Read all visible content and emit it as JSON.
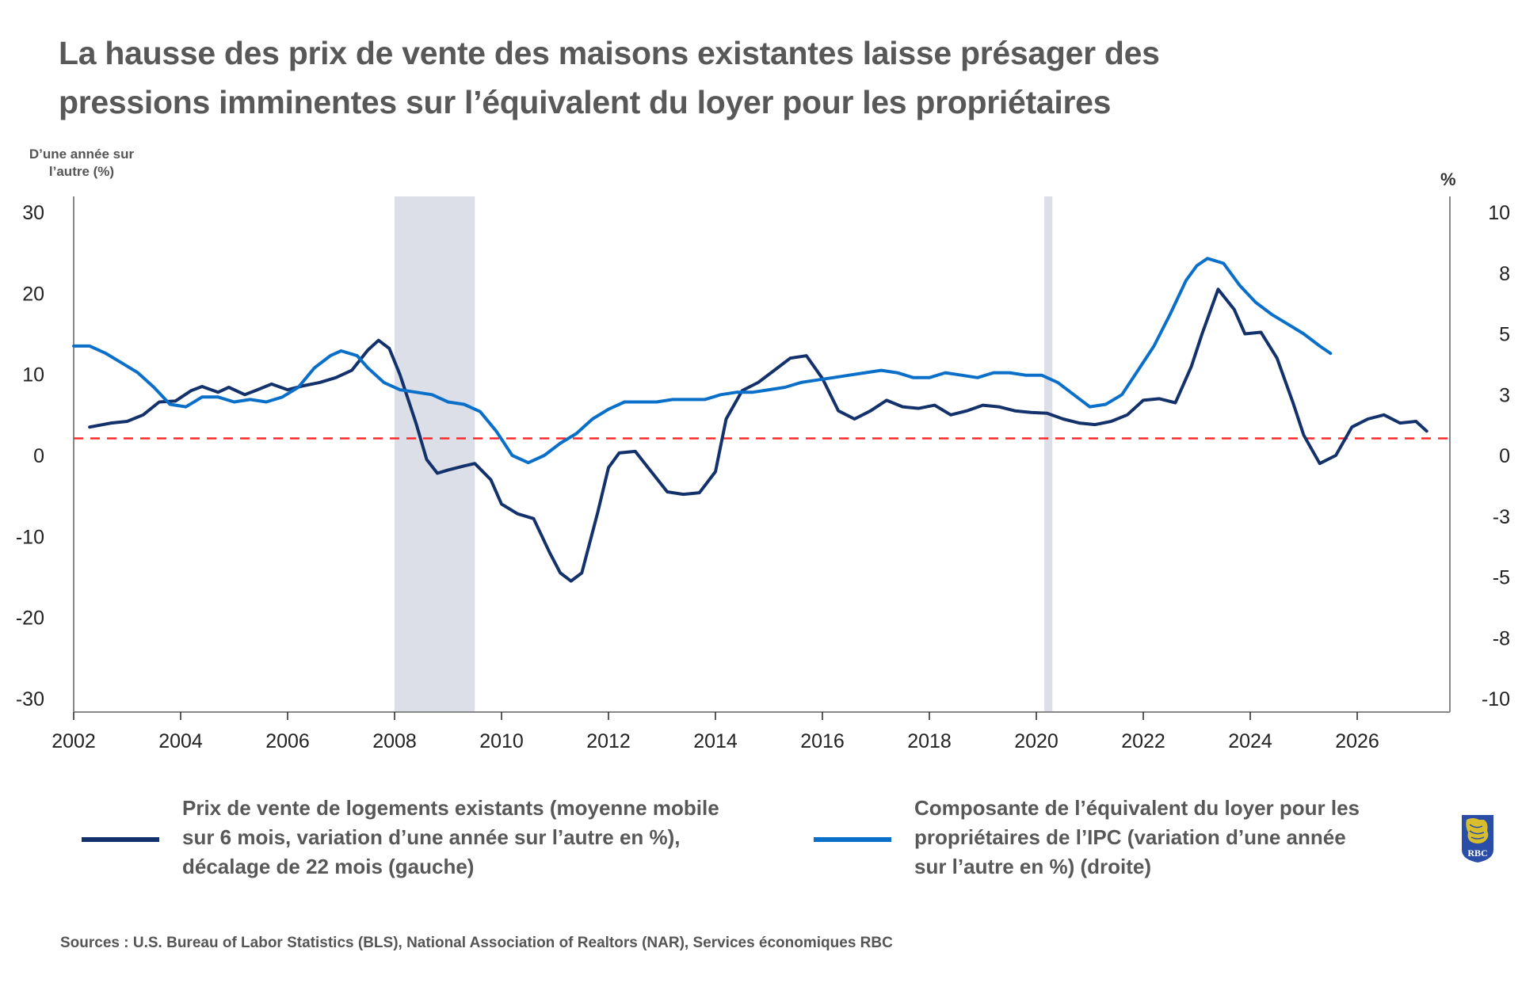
{
  "header": {
    "title_line1": "La hausse des prix de vente des maisons existantes laisse présager des",
    "title_line2": "pressions imminentes sur l’équivalent du loyer pour les propriétaires"
  },
  "footer": {
    "sources": "Sources : U.S. Bureau of Labor Statistics (BLS), National Association of Realtors (NAR), Services économiques RBC"
  },
  "logo": {
    "name": "rbc-logo",
    "text": "RBC"
  },
  "colors": {
    "series_left": "#13316b",
    "series_right": "#0a6fc8",
    "reference_line": "#ff2b2b",
    "recession_shading": "#dcdfe8",
    "axis": "#888888",
    "logo_blue": "#2a4ea8",
    "logo_gold": "#f7d117"
  },
  "chart_data": {
    "type": "line",
    "title": "La hausse des prix de vente des maisons existantes laisse présager des pressions imminentes sur l’équivalent du loyer pour les propriétaires",
    "xlabel": "",
    "ylabel_left": "D’une année sur l’autre (%)",
    "ylabel_right": "%",
    "x_ticks": [
      "2002",
      "2004",
      "2006",
      "2008",
      "2010",
      "2012",
      "2014",
      "2016",
      "2018",
      "2020",
      "2022",
      "2024",
      "2026"
    ],
    "xlim": [
      2002,
      2027.8
    ],
    "ylim_left": [
      -30,
      30
    ],
    "ylim_right": [
      -10,
      10
    ],
    "y_ticks_left": [
      "30",
      "20",
      "10",
      "0",
      "-10",
      "-20",
      "-30"
    ],
    "y_ticks_right": [
      "10",
      "8",
      "5",
      "3",
      "0",
      "-3",
      "-5",
      "-8",
      "-10"
    ],
    "grid": false,
    "reference_line": {
      "axis": "left",
      "value": 2.1,
      "style": "dashed"
    },
    "shaded_periods": [
      {
        "label": "recession",
        "start": 2008.0,
        "end": 2009.5
      },
      {
        "label": "recession",
        "start": 2020.15,
        "end": 2020.3
      }
    ],
    "legend": {
      "placement": "bottom"
    },
    "series": [
      {
        "name": "Prix de vente de logements existants (moyenne mobile sur 6 mois, variation d’une année sur l’autre en %), décalage de 22 mois (gauche)",
        "axis": "left",
        "x": [
          2002.3,
          2002.7,
          2003.0,
          2003.3,
          2003.6,
          2003.9,
          2004.2,
          2004.4,
          2004.7,
          2004.9,
          2005.2,
          2005.4,
          2005.7,
          2006.0,
          2006.3,
          2006.6,
          2006.9,
          2007.2,
          2007.5,
          2007.7,
          2007.9,
          2008.1,
          2008.4,
          2008.6,
          2008.8,
          2009.0,
          2009.3,
          2009.5,
          2009.8,
          2010.0,
          2010.3,
          2010.6,
          2010.9,
          2011.1,
          2011.3,
          2011.5,
          2011.8,
          2012.0,
          2012.2,
          2012.5,
          2012.8,
          2013.1,
          2013.4,
          2013.7,
          2014.0,
          2014.2,
          2014.5,
          2014.8,
          2015.1,
          2015.4,
          2015.7,
          2016.0,
          2016.3,
          2016.6,
          2016.9,
          2017.2,
          2017.5,
          2017.8,
          2018.1,
          2018.4,
          2018.7,
          2019.0,
          2019.3,
          2019.6,
          2019.9,
          2020.2,
          2020.5,
          2020.8,
          2021.1,
          2021.4,
          2021.7,
          2022.0,
          2022.3,
          2022.6,
          2022.9,
          2023.1,
          2023.4,
          2023.7,
          2023.9,
          2024.2,
          2024.5,
          2024.8,
          2025.0,
          2025.3,
          2025.6,
          2025.9,
          2026.2,
          2026.5,
          2026.8,
          2027.1,
          2027.3
        ],
        "values": [
          3.5,
          4.0,
          4.2,
          5.0,
          6.6,
          6.7,
          8.0,
          8.5,
          7.8,
          8.4,
          7.5,
          8.0,
          8.8,
          8.1,
          8.6,
          9.0,
          9.6,
          10.5,
          13.0,
          14.2,
          13.2,
          10.0,
          4.0,
          -0.5,
          -2.2,
          -1.8,
          -1.3,
          -1.0,
          -3.0,
          -6.0,
          -7.2,
          -7.8,
          -12.0,
          -14.5,
          -15.5,
          -14.5,
          -7.0,
          -1.5,
          0.3,
          0.5,
          -2.0,
          -4.5,
          -4.8,
          -4.6,
          -2.0,
          4.5,
          8.0,
          9.0,
          10.5,
          12.0,
          12.3,
          9.5,
          5.5,
          4.5,
          5.5,
          6.8,
          6.0,
          5.8,
          6.2,
          5.0,
          5.5,
          6.2,
          6.0,
          5.5,
          5.3,
          5.2,
          4.5,
          4.0,
          3.8,
          4.2,
          5.0,
          6.8,
          7.0,
          6.5,
          11.0,
          15.0,
          20.5,
          18.0,
          15.0,
          15.2,
          12.0,
          6.5,
          2.5,
          -1.0,
          0.0,
          3.5,
          4.5,
          5.0,
          4.0,
          4.2,
          3.0
        ]
      },
      {
        "name": "Composante de l’équivalent du loyer pour les propriétaires de l’IPC (variation d’une année sur l’autre en %) (droite)",
        "axis": "right",
        "x": [
          2002.0,
          2002.3,
          2002.6,
          2002.9,
          2003.2,
          2003.5,
          2003.8,
          2004.1,
          2004.4,
          2004.7,
          2005.0,
          2005.3,
          2005.6,
          2005.9,
          2006.2,
          2006.5,
          2006.8,
          2007.0,
          2007.3,
          2007.5,
          2007.8,
          2008.1,
          2008.4,
          2008.7,
          2009.0,
          2009.3,
          2009.6,
          2009.9,
          2010.2,
          2010.5,
          2010.8,
          2011.1,
          2011.4,
          2011.7,
          2012.0,
          2012.3,
          2012.6,
          2012.9,
          2013.2,
          2013.5,
          2013.8,
          2014.1,
          2014.4,
          2014.7,
          2015.0,
          2015.3,
          2015.6,
          2015.9,
          2016.2,
          2016.5,
          2016.8,
          2017.1,
          2017.4,
          2017.7,
          2018.0,
          2018.3,
          2018.6,
          2018.9,
          2019.2,
          2019.5,
          2019.8,
          2020.1,
          2020.4,
          2020.7,
          2021.0,
          2021.3,
          2021.6,
          2021.9,
          2022.2,
          2022.5,
          2022.8,
          2023.0,
          2023.2,
          2023.5,
          2023.8,
          2024.1,
          2024.4,
          2024.7,
          2025.0,
          2025.3,
          2025.5
        ],
        "values": [
          4.5,
          4.5,
          4.2,
          3.8,
          3.4,
          2.8,
          2.1,
          2.0,
          2.4,
          2.4,
          2.2,
          2.3,
          2.2,
          2.4,
          2.8,
          3.6,
          4.1,
          4.3,
          4.1,
          3.6,
          3.0,
          2.7,
          2.6,
          2.5,
          2.2,
          2.1,
          1.8,
          1.0,
          0.0,
          -0.3,
          0.0,
          0.5,
          0.9,
          1.5,
          1.9,
          2.2,
          2.2,
          2.2,
          2.3,
          2.3,
          2.3,
          2.5,
          2.6,
          2.6,
          2.7,
          2.8,
          3.0,
          3.1,
          3.2,
          3.3,
          3.4,
          3.5,
          3.4,
          3.2,
          3.2,
          3.4,
          3.3,
          3.2,
          3.4,
          3.4,
          3.3,
          3.3,
          3.0,
          2.5,
          2.0,
          2.1,
          2.5,
          3.5,
          4.5,
          5.8,
          7.2,
          7.8,
          8.1,
          7.9,
          7.0,
          6.3,
          5.8,
          5.4,
          5.0,
          4.5,
          4.2
        ]
      }
    ]
  }
}
